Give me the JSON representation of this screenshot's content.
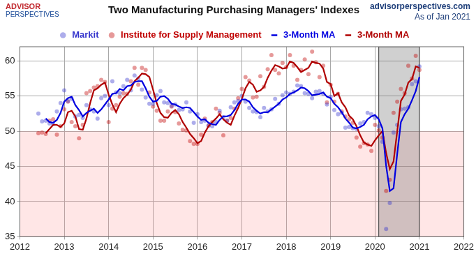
{
  "chart_data": {
    "type": "scatter",
    "title": "Two Manufacturing Purchasing Managers' Indexes",
    "logo": [
      "ADVISOR",
      "PERSPECTIVES"
    ],
    "source": "advisorperspectives.com",
    "note": "As of Jan 2021",
    "x": [
      2012.417,
      2012.5,
      2012.583,
      2012.667,
      2012.75,
      2012.833,
      2012.917,
      2013,
      2013.083,
      2013.167,
      2013.25,
      2013.333,
      2013.417,
      2013.5,
      2013.583,
      2013.667,
      2013.75,
      2013.833,
      2013.917,
      2014,
      2014.083,
      2014.167,
      2014.25,
      2014.333,
      2014.417,
      2014.5,
      2014.583,
      2014.667,
      2014.75,
      2014.833,
      2014.917,
      2015,
      2015.083,
      2015.167,
      2015.25,
      2015.333,
      2015.417,
      2015.5,
      2015.583,
      2015.667,
      2015.75,
      2015.833,
      2015.917,
      2016,
      2016.083,
      2016.167,
      2016.25,
      2016.333,
      2016.417,
      2016.5,
      2016.583,
      2016.667,
      2016.75,
      2016.833,
      2016.917,
      2017,
      2017.083,
      2017.167,
      2017.25,
      2017.333,
      2017.417,
      2017.5,
      2017.583,
      2017.667,
      2017.75,
      2017.833,
      2017.917,
      2018,
      2018.083,
      2018.167,
      2018.25,
      2018.333,
      2018.417,
      2018.5,
      2018.583,
      2018.667,
      2018.75,
      2018.833,
      2018.917,
      2019,
      2019.083,
      2019.167,
      2019.25,
      2019.333,
      2019.417,
      2019.5,
      2019.583,
      2019.667,
      2019.75,
      2019.833,
      2019.917,
      2020,
      2020.083,
      2020.167,
      2020.25,
      2020.333,
      2020.417,
      2020.5,
      2020.583,
      2020.667,
      2020.75,
      2020.833,
      2020.917,
      2021
    ],
    "series": [
      {
        "name": "Markit",
        "type": "scatter",
        "marker": "circle",
        "color": "#3333cc",
        "values": [
          52.5,
          51.4,
          51.5,
          51.1,
          51.0,
          52.8,
          54.0,
          55.8,
          54.3,
          54.6,
          52.1,
          52.3,
          51.9,
          53.7,
          53.1,
          52.8,
          51.8,
          54.7,
          55.0,
          53.7,
          57.1,
          55.5,
          55.4,
          56.4,
          57.3,
          55.8,
          57.9,
          57.5,
          55.9,
          54.8,
          53.9,
          53.9,
          55.1,
          55.7,
          54.1,
          54.0,
          53.6,
          53.8,
          53.0,
          53.1,
          54.1,
          52.8,
          51.2,
          52.4,
          51.3,
          51.5,
          50.8,
          50.7,
          51.3,
          52.9,
          52.0,
          51.5,
          53.4,
          54.1,
          54.3,
          55.0,
          54.2,
          53.3,
          52.8,
          52.7,
          52.0,
          53.3,
          52.8,
          53.1,
          54.6,
          53.9,
          55.1,
          55.5,
          55.3,
          55.6,
          56.5,
          56.4,
          55.4,
          55.3,
          54.7,
          55.6,
          55.7,
          55.3,
          53.8,
          54.9,
          53.0,
          52.4,
          52.6,
          50.5,
          50.6,
          50.4,
          50.3,
          51.1,
          51.3,
          52.6,
          52.4,
          51.9,
          50.7,
          48.5,
          36.1,
          39.8,
          49.8,
          50.9,
          53.1,
          53.2,
          53.4,
          56.7,
          57.1,
          59.2
        ]
      },
      {
        "name": "Institute for Supply Management",
        "type": "scatter",
        "marker": "circle",
        "color": "#c00000",
        "values": [
          49.7,
          49.8,
          49.6,
          51.5,
          51.7,
          49.5,
          50.7,
          53.1,
          54.2,
          51.3,
          50.7,
          49.0,
          50.9,
          55.4,
          55.7,
          56.2,
          56.4,
          57.3,
          57.0,
          51.3,
          53.2,
          53.7,
          54.9,
          55.4,
          55.3,
          57.1,
          59.0,
          56.6,
          59.0,
          58.7,
          55.5,
          53.5,
          52.9,
          51.5,
          51.5,
          52.8,
          53.5,
          52.7,
          51.1,
          50.2,
          50.1,
          48.6,
          48.2,
          48.2,
          49.5,
          51.8,
          50.8,
          51.3,
          53.2,
          52.6,
          49.4,
          51.5,
          51.9,
          53.2,
          54.7,
          56.0,
          57.7,
          57.2,
          54.8,
          54.9,
          57.8,
          56.3,
          58.8,
          60.8,
          58.7,
          58.2,
          59.7,
          59.1,
          60.8,
          59.3,
          57.3,
          58.7,
          60.2,
          58.1,
          61.3,
          59.8,
          57.7,
          59.3,
          54.1,
          56.6,
          54.2,
          55.3,
          52.8,
          52.1,
          51.7,
          51.2,
          49.1,
          47.8,
          48.3,
          48.1,
          47.2,
          50.9,
          50.1,
          49.1,
          41.5,
          43.1,
          52.6,
          54.2,
          56.0,
          55.4,
          59.3,
          57.5,
          60.7,
          58.7
        ]
      },
      {
        "name": "3-Month MA",
        "type": "line",
        "line_style": "solid",
        "color": "#0000e0",
        "values": [
          null,
          null,
          51.8,
          51.3,
          51.2,
          51.6,
          52.6,
          54.2,
          54.7,
          54.9,
          53.7,
          53.0,
          52.1,
          52.6,
          52.9,
          53.2,
          52.6,
          53.1,
          53.8,
          54.5,
          55.3,
          55.4,
          56.0,
          55.8,
          56.4,
          56.5,
          57.0,
          57.1,
          57.1,
          56.1,
          54.9,
          54.2,
          54.3,
          54.9,
          55.0,
          54.6,
          53.9,
          53.8,
          53.5,
          53.3,
          53.4,
          53.3,
          52.7,
          52.1,
          51.6,
          51.7,
          51.2,
          51.0,
          50.9,
          51.6,
          52.1,
          52.1,
          52.3,
          53.0,
          53.9,
          54.5,
          54.5,
          54.2,
          53.4,
          52.9,
          52.5,
          52.7,
          52.7,
          53.1,
          53.5,
          53.9,
          54.5,
          54.8,
          55.3,
          55.5,
          55.8,
          56.2,
          56.1,
          55.7,
          55.1,
          55.2,
          55.3,
          55.5,
          54.9,
          54.7,
          53.9,
          53.4,
          52.7,
          51.8,
          51.2,
          50.5,
          50.4,
          50.6,
          50.9,
          51.7,
          52.1,
          52.3,
          51.7,
          50.4,
          45.1,
          41.5,
          41.9,
          46.8,
          51.3,
          52.4,
          53.2,
          54.4,
          55.7,
          57.7
        ]
      },
      {
        "name": "3-Month MA",
        "type": "line",
        "line_style": "solid",
        "color": "#b00000",
        "values": [
          null,
          null,
          49.7,
          50.3,
          50.9,
          50.9,
          50.6,
          51.1,
          52.7,
          52.9,
          52.1,
          50.3,
          50.2,
          51.8,
          54.0,
          55.8,
          56.1,
          56.6,
          56.9,
          55.2,
          53.8,
          52.7,
          53.9,
          54.7,
          55.2,
          55.9,
          57.1,
          57.6,
          58.2,
          58.1,
          57.7,
          55.9,
          54.0,
          52.6,
          52.0,
          51.9,
          52.6,
          53.0,
          52.4,
          51.3,
          50.5,
          49.6,
          49.0,
          48.3,
          48.6,
          49.8,
          50.7,
          51.3,
          51.8,
          52.4,
          51.7,
          51.2,
          50.9,
          52.2,
          53.3,
          54.6,
          56.1,
          57.0,
          56.6,
          55.6,
          55.8,
          56.3,
          57.6,
          58.6,
          59.4,
          59.2,
          58.9,
          59.0,
          59.9,
          59.7,
          59.1,
          58.4,
          58.7,
          59.0,
          59.9,
          59.7,
          59.6,
          58.9,
          57.0,
          56.7,
          55.0,
          55.4,
          54.1,
          53.4,
          52.2,
          51.7,
          50.7,
          49.4,
          48.4,
          48.1,
          47.9,
          48.7,
          49.4,
          50.0,
          46.9,
          44.6,
          45.7,
          50.0,
          54.3,
          55.2,
          56.9,
          57.4,
          59.2,
          59.0
        ]
      }
    ],
    "shaded_below": 50,
    "shaded_x_range": [
      2020.083,
      2021
    ],
    "xlim": [
      2012,
      2022
    ],
    "xticks": [
      2012,
      2013,
      2014,
      2015,
      2016,
      2017,
      2018,
      2019,
      2020,
      2021,
      2022
    ],
    "ylim": [
      35,
      62
    ],
    "yticks": [
      35,
      40,
      45,
      50,
      55,
      60
    ],
    "grid": true,
    "legend": "top"
  }
}
